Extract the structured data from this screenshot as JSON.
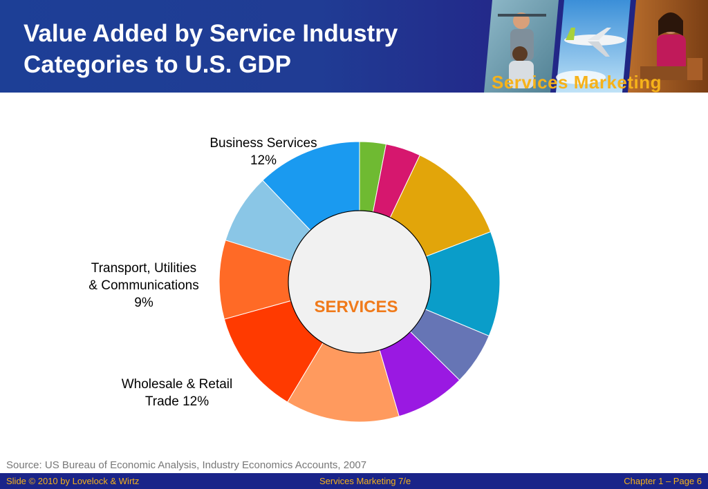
{
  "slide": {
    "title_line1": "Value Added by Service Industry",
    "title_line2": "Categories to U.S. GDP",
    "brand": "Services Marketing"
  },
  "chart_data": {
    "type": "pie",
    "center_label": "SERVICES",
    "slices": [
      {
        "label": "",
        "value": 3,
        "color": "#6fba32"
      },
      {
        "label": "",
        "value": 4,
        "color": "#d6176e"
      },
      {
        "label": "",
        "value": 12,
        "color": "#e2a50a"
      },
      {
        "label": "",
        "value": 12,
        "color": "#0a9dc9"
      },
      {
        "label": "",
        "value": 6,
        "color": "#6675b5"
      },
      {
        "label": "",
        "value": 8,
        "color": "#9a19e2"
      },
      {
        "label": "",
        "value": 13,
        "color": "#ff9a5e"
      },
      {
        "label": "",
        "value": 12,
        "color": "#ff3a00"
      },
      {
        "label": "",
        "value": 9,
        "color": "#ff6a26"
      },
      {
        "label": "",
        "value": 8,
        "color": "#8ac6e6"
      },
      {
        "label": "",
        "value": 12,
        "color": "#1a9af0"
      }
    ],
    "annotations": {
      "business_name": "Business Services",
      "business_value": "12%",
      "transport_line1": "Transport, Utilities",
      "transport_line2": "& Communications",
      "transport_value": "9%",
      "wholesale_line1": "Wholesale & Retail",
      "wholesale_line2": "Trade 12%"
    }
  },
  "source": "Source: US Bureau of Economic Analysis, Industry Economics Accounts, 2007",
  "footer": {
    "left": "Slide © 2010 by Lovelock & Wirtz",
    "center": "Services Marketing 7/e",
    "right": "Chapter 1 – Page 6"
  },
  "colors": {
    "header_blue": "#1d3f96",
    "accent_gold": "#f6b21a",
    "center_text": "#f07a1a"
  }
}
